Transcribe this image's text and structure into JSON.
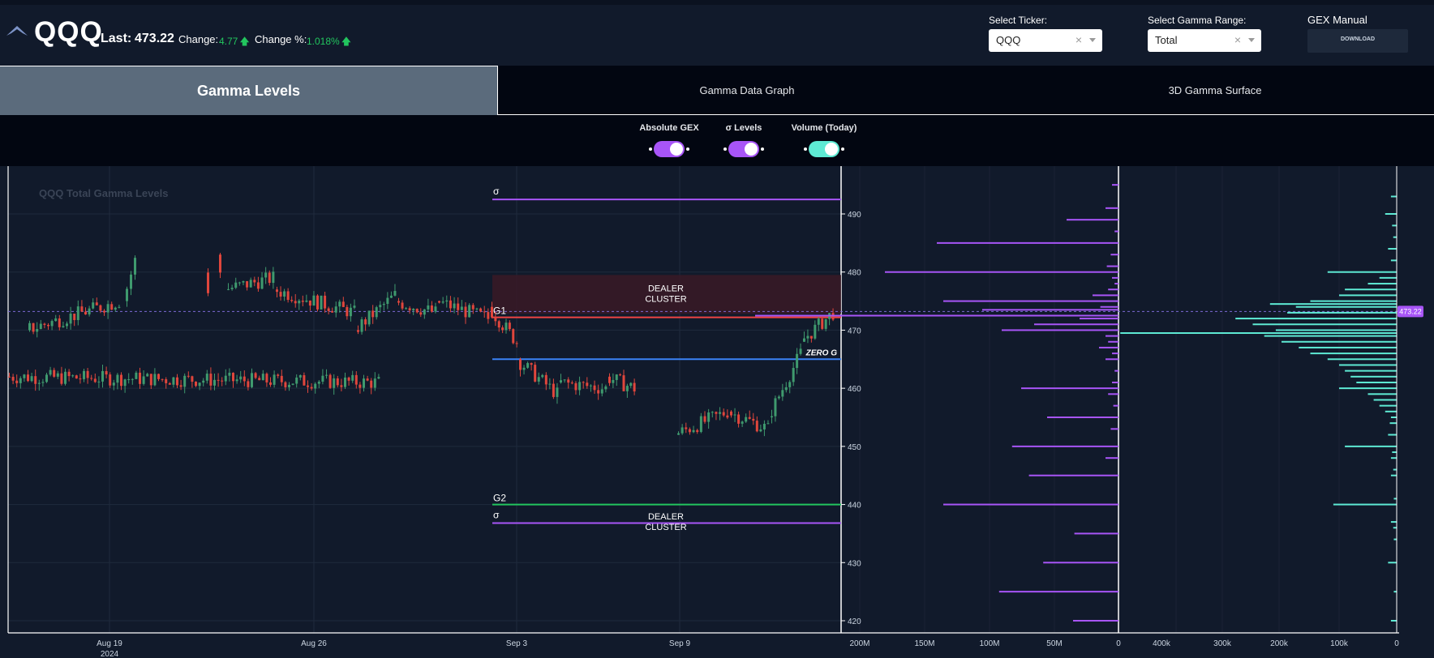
{
  "header": {
    "ticker": "QQQ",
    "last_label": "Last:",
    "last_value": "473.22",
    "change_label": "Change:",
    "change_value": "4.77",
    "change_pct_label": "Change %:",
    "change_pct_value": "1.018%",
    "select_ticker_label": "Select Ticker:",
    "select_ticker_value": "QQQ",
    "select_range_label": "Select Gamma Range:",
    "select_range_value": "Total",
    "gex_manual_label": "GEX Manual",
    "download_label": "DOWNLOAD",
    "clear_glyph": "×",
    "up_arrow_glyph": "🡅"
  },
  "tabs": [
    {
      "label": "Gamma Levels",
      "active": true
    },
    {
      "label": "Gamma Data Graph",
      "active": false
    },
    {
      "label": "3D Gamma Surface",
      "active": false
    }
  ],
  "toggles": [
    {
      "label": "Absolute GEX",
      "on": true,
      "color": "#a855f7"
    },
    {
      "label": "σ Levels",
      "on": true,
      "color": "#a855f7"
    },
    {
      "label": "Volume (Today)",
      "on": true,
      "color": "#5eead4"
    }
  ],
  "chart": {
    "watermark": "QQQ Total Gamma Levels",
    "price_ticks": [
      "490",
      "480",
      "470",
      "460",
      "450",
      "440",
      "430",
      "420"
    ],
    "date_labels": [
      {
        "label": "Aug 19",
        "sub": "2024"
      },
      {
        "label": "Aug 26",
        "sub": ""
      },
      {
        "label": "Sep 3",
        "sub": ""
      },
      {
        "label": "Sep 9",
        "sub": ""
      }
    ],
    "gex_ticks": [
      "200M",
      "150M",
      "100M",
      "50M",
      "0"
    ],
    "vol_ticks": [
      "400k",
      "300k",
      "200k",
      "100k",
      "0"
    ],
    "current_price": "473.22",
    "levels": {
      "sigma_upper": {
        "label": "σ",
        "price": 492.5,
        "color": "#a855f7"
      },
      "g1": {
        "label": "G1",
        "price": 472.2,
        "color": "#ef4444"
      },
      "zero_g": {
        "label": "ZERO G",
        "price": 465.0,
        "color": "#3b82f6"
      },
      "g2": {
        "label": "G2",
        "price": 440.0,
        "color": "#22c55e"
      },
      "sigma_lower": {
        "label": "σ",
        "price": 436.8,
        "color": "#a855f7"
      }
    },
    "dealer_cluster_upper": {
      "label_1": "DEALER",
      "label_2": "CLUSTER",
      "price_from": 472.8,
      "price_to": 479.5
    },
    "dealer_cluster_lower": {
      "label_1": "DEALER",
      "label_2": "CLUSTER",
      "price_from": 433.0,
      "price_to": 439.5
    }
  },
  "colors": {
    "accent_purple": "#a855f7",
    "accent_cyan": "#5eead4",
    "candle_up": "#3f9a6e",
    "candle_down": "#e0463c"
  }
}
